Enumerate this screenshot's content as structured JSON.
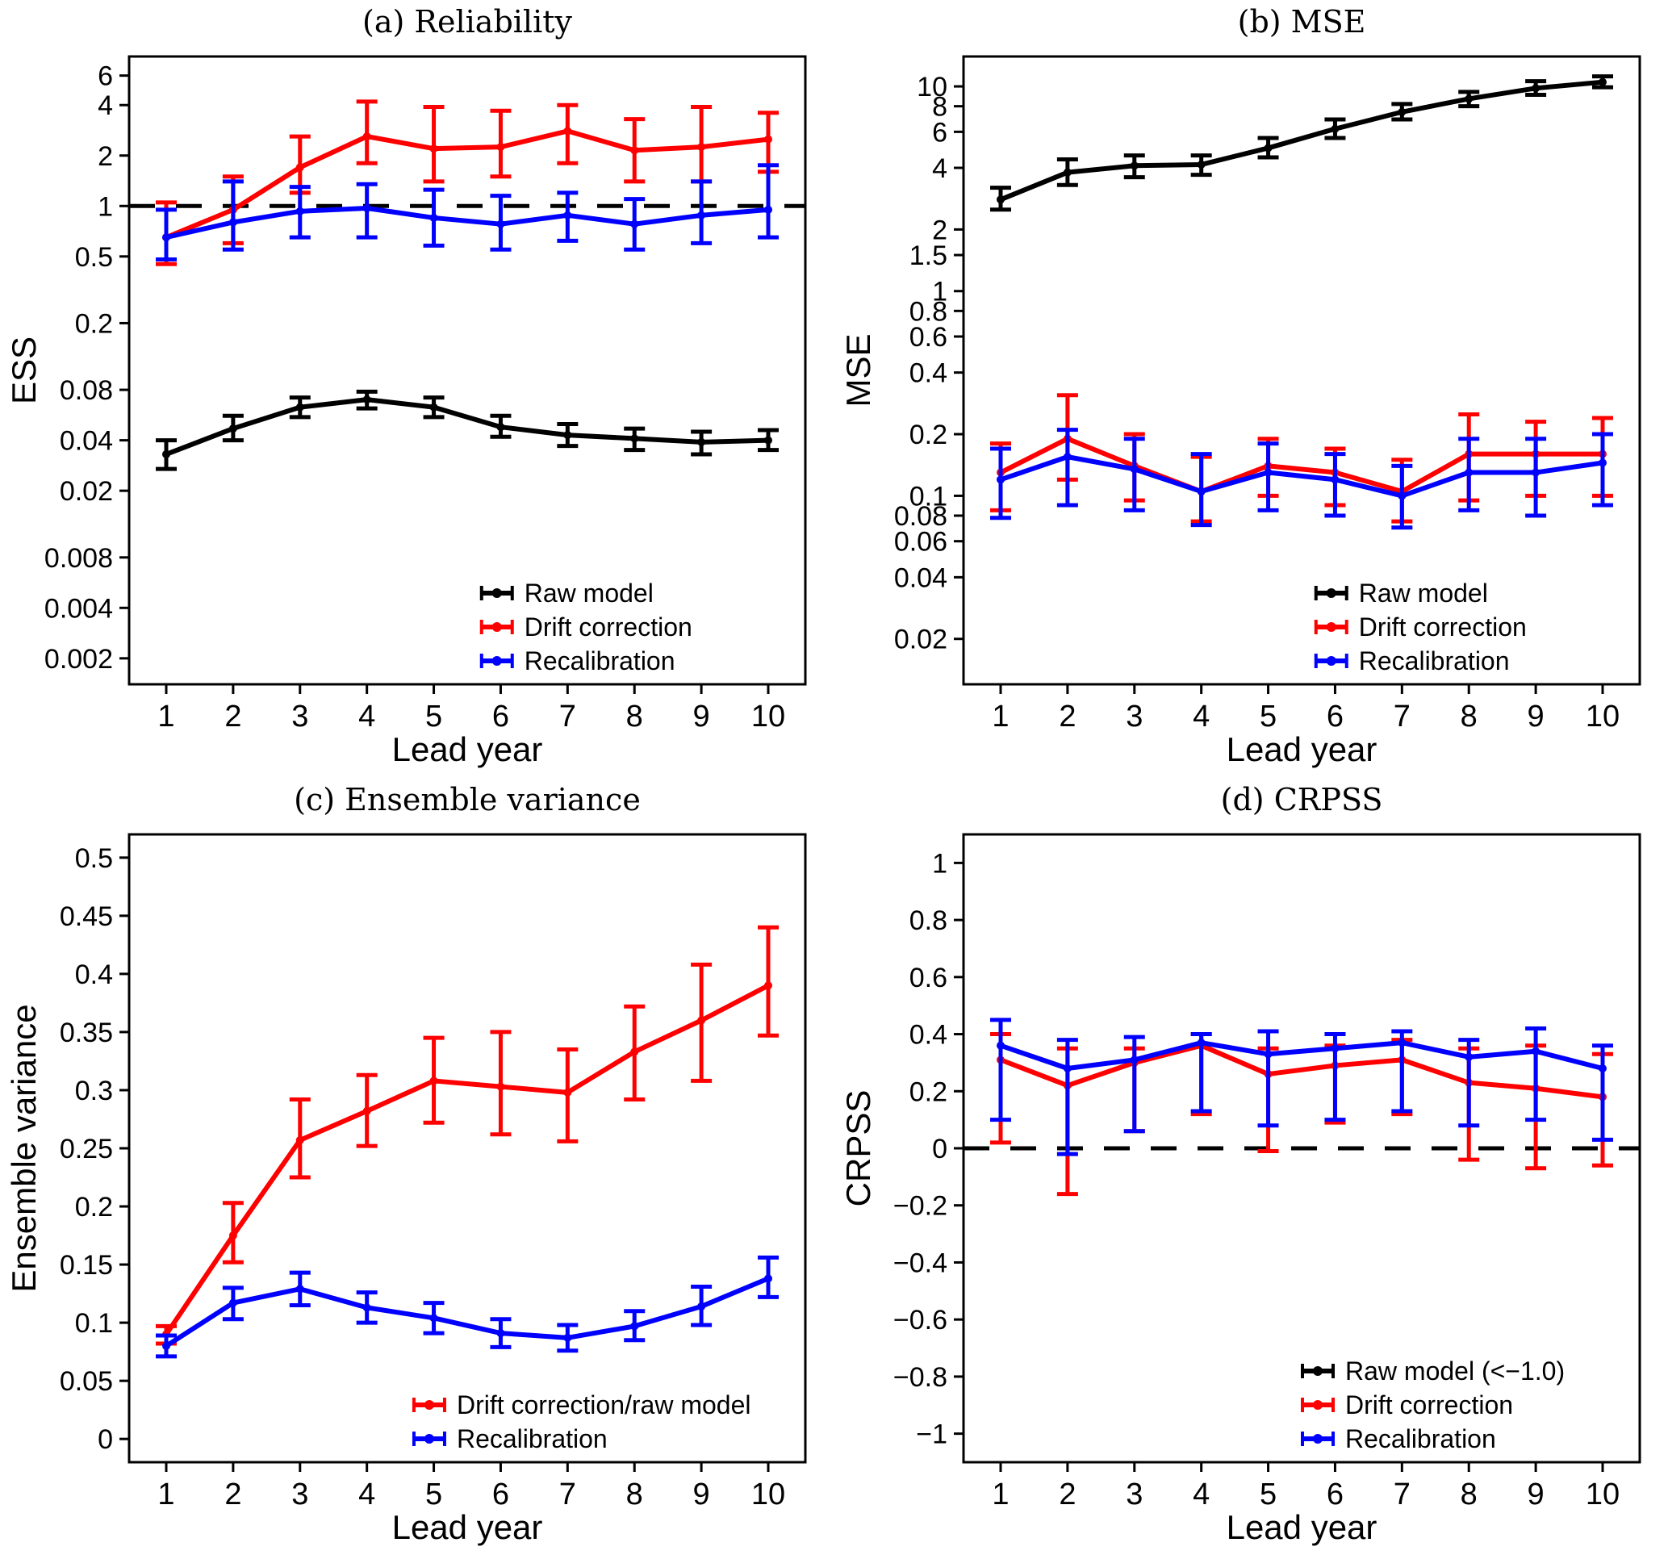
{
  "figure": {
    "background": "#ffffff"
  },
  "colors": {
    "raw_model": "#000000",
    "drift_correction": "#FF0000",
    "recalibration": "#0000FF"
  },
  "chart_data": [
    {
      "id": "a",
      "type": "line",
      "title": "(a) Reliability",
      "xlabel": "Lead year",
      "ylabel": "ESS",
      "scale": "log",
      "ylim": [
        0.0014,
        7.8
      ],
      "x": [
        1,
        2,
        3,
        4,
        5,
        6,
        7,
        8,
        9,
        10
      ],
      "xtick_labels": [
        "1",
        "2",
        "3",
        "4",
        "5",
        "6",
        "7",
        "8",
        "9",
        "10"
      ],
      "yticks": [
        {
          "v": 6,
          "label": "6"
        },
        {
          "v": 4,
          "label": "4"
        },
        {
          "v": 2,
          "label": "2"
        },
        {
          "v": 1,
          "label": "1"
        },
        {
          "v": 0.5,
          "label": "0.5"
        },
        {
          "v": 0.2,
          "label": "0.2"
        },
        {
          "v": 0.08,
          "label": "0.08"
        },
        {
          "v": 0.04,
          "label": "0.04"
        },
        {
          "v": 0.02,
          "label": "0.02"
        },
        {
          "v": 0.008,
          "label": "0.008"
        },
        {
          "v": 0.004,
          "label": "0.004"
        },
        {
          "v": 0.002,
          "label": "0.002"
        }
      ],
      "ref_line": 1,
      "series": [
        {
          "name": "Raw model",
          "color": "#000000",
          "values": [
            0.033,
            0.047,
            0.063,
            0.07,
            0.063,
            0.048,
            0.043,
            0.041,
            0.039,
            0.04
          ],
          "lo": [
            0.027,
            0.04,
            0.055,
            0.062,
            0.055,
            0.042,
            0.037,
            0.035,
            0.033,
            0.035
          ],
          "hi": [
            0.04,
            0.056,
            0.072,
            0.078,
            0.072,
            0.056,
            0.05,
            0.047,
            0.045,
            0.046
          ]
        },
        {
          "name": "Drift correction",
          "color": "#FF0000",
          "values": [
            0.65,
            0.95,
            1.7,
            2.6,
            2.2,
            2.25,
            2.8,
            2.15,
            2.25,
            2.5
          ],
          "lo": [
            0.45,
            0.6,
            1.2,
            1.8,
            1.4,
            1.5,
            1.8,
            1.4,
            1.4,
            1.6
          ],
          "hi": [
            1.05,
            1.5,
            2.6,
            4.2,
            3.9,
            3.7,
            4.0,
            3.3,
            3.9,
            3.6
          ]
        },
        {
          "name": "Recalibration",
          "color": "#0000FF",
          "values": [
            0.65,
            0.8,
            0.93,
            0.97,
            0.85,
            0.78,
            0.88,
            0.78,
            0.88,
            0.95
          ],
          "lo": [
            0.48,
            0.55,
            0.65,
            0.65,
            0.58,
            0.55,
            0.62,
            0.55,
            0.6,
            0.65
          ],
          "hi": [
            0.95,
            1.4,
            1.3,
            1.35,
            1.25,
            1.15,
            1.2,
            1.1,
            1.4,
            1.75
          ]
        }
      ],
      "legend": {
        "x_frac": 0.52,
        "entries": [
          {
            "label": "Raw model",
            "color": "#000000"
          },
          {
            "label": "Drift correction",
            "color": "#FF0000"
          },
          {
            "label": "Recalibration",
            "color": "#0000FF"
          }
        ]
      }
    },
    {
      "id": "b",
      "type": "line",
      "title": "(b) MSE",
      "xlabel": "Lead year",
      "ylabel": "MSE",
      "scale": "log",
      "ylim": [
        0.012,
        14
      ],
      "x": [
        1,
        2,
        3,
        4,
        5,
        6,
        7,
        8,
        9,
        10
      ],
      "xtick_labels": [
        "1",
        "2",
        "3",
        "4",
        "5",
        "6",
        "7",
        "8",
        "9",
        "10"
      ],
      "yticks": [
        {
          "v": 10,
          "label": "10"
        },
        {
          "v": 8,
          "label": "8"
        },
        {
          "v": 6,
          "label": "6"
        },
        {
          "v": 4,
          "label": "4"
        },
        {
          "v": 2,
          "label": "2"
        },
        {
          "v": 1.5,
          "label": "1.5"
        },
        {
          "v": 1,
          "label": "1"
        },
        {
          "v": 0.8,
          "label": "0.8"
        },
        {
          "v": 0.6,
          "label": "0.6"
        },
        {
          "v": 0.4,
          "label": "0.4"
        },
        {
          "v": 0.2,
          "label": "0.2"
        },
        {
          "v": 0.1,
          "label": "0.1"
        },
        {
          "v": 0.08,
          "label": "0.08"
        },
        {
          "v": 0.06,
          "label": "0.06"
        },
        {
          "v": 0.04,
          "label": "0.04"
        },
        {
          "v": 0.02,
          "label": "0.02"
        }
      ],
      "ref_line": null,
      "series": [
        {
          "name": "Raw model",
          "color": "#000000",
          "values": [
            2.8,
            3.8,
            4.1,
            4.15,
            5.0,
            6.2,
            7.5,
            8.7,
            9.8,
            10.5
          ],
          "lo": [
            2.5,
            3.3,
            3.6,
            3.7,
            4.5,
            5.6,
            6.9,
            8.0,
            9.1,
            9.9
          ],
          "hi": [
            3.2,
            4.4,
            4.6,
            4.6,
            5.6,
            6.9,
            8.2,
            9.4,
            10.6,
            11.2
          ]
        },
        {
          "name": "Drift correction",
          "color": "#FF0000",
          "values": [
            0.13,
            0.19,
            0.14,
            0.105,
            0.14,
            0.13,
            0.105,
            0.16,
            0.16,
            0.16
          ],
          "lo": [
            0.085,
            0.12,
            0.095,
            0.075,
            0.1,
            0.09,
            0.075,
            0.095,
            0.1,
            0.1
          ],
          "hi": [
            0.18,
            0.31,
            0.2,
            0.155,
            0.19,
            0.17,
            0.15,
            0.25,
            0.23,
            0.24
          ]
        },
        {
          "name": "Recalibration",
          "color": "#0000FF",
          "values": [
            0.12,
            0.155,
            0.135,
            0.105,
            0.13,
            0.12,
            0.1,
            0.13,
            0.13,
            0.145
          ],
          "lo": [
            0.078,
            0.09,
            0.085,
            0.072,
            0.085,
            0.08,
            0.07,
            0.085,
            0.08,
            0.09
          ],
          "hi": [
            0.17,
            0.21,
            0.19,
            0.16,
            0.18,
            0.16,
            0.14,
            0.19,
            0.19,
            0.2
          ]
        }
      ],
      "legend": {
        "x_frac": 0.52,
        "entries": [
          {
            "label": "Raw model",
            "color": "#000000"
          },
          {
            "label": "Drift correction",
            "color": "#FF0000"
          },
          {
            "label": "Recalibration",
            "color": "#0000FF"
          }
        ]
      }
    },
    {
      "id": "c",
      "type": "line",
      "title": "(c) Ensemble variance",
      "xlabel": "Lead year",
      "ylabel": "Ensemble variance",
      "scale": "linear",
      "ylim": [
        -0.02,
        0.52
      ],
      "x": [
        1,
        2,
        3,
        4,
        5,
        6,
        7,
        8,
        9,
        10
      ],
      "xtick_labels": [
        "1",
        "2",
        "3",
        "4",
        "5",
        "6",
        "7",
        "8",
        "9",
        "10"
      ],
      "yticks": [
        {
          "v": 0.5,
          "label": "0.5"
        },
        {
          "v": 0.45,
          "label": "0.45"
        },
        {
          "v": 0.4,
          "label": "0.4"
        },
        {
          "v": 0.35,
          "label": "0.35"
        },
        {
          "v": 0.3,
          "label": "0.3"
        },
        {
          "v": 0.25,
          "label": "0.25"
        },
        {
          "v": 0.2,
          "label": "0.2"
        },
        {
          "v": 0.15,
          "label": "0.15"
        },
        {
          "v": 0.1,
          "label": "0.1"
        },
        {
          "v": 0.05,
          "label": "0.05"
        },
        {
          "v": 0,
          "label": "0"
        }
      ],
      "ref_line": null,
      "series": [
        {
          "name": "Drift correction/raw model",
          "color": "#FF0000",
          "values": [
            0.09,
            0.175,
            0.257,
            0.282,
            0.308,
            0.303,
            0.298,
            0.333,
            0.36,
            0.39
          ],
          "lo": [
            0.082,
            0.152,
            0.225,
            0.252,
            0.272,
            0.262,
            0.256,
            0.292,
            0.308,
            0.347
          ],
          "hi": [
            0.097,
            0.203,
            0.292,
            0.313,
            0.345,
            0.35,
            0.335,
            0.372,
            0.408,
            0.44
          ]
        },
        {
          "name": "Recalibration",
          "color": "#0000FF",
          "values": [
            0.08,
            0.117,
            0.129,
            0.113,
            0.104,
            0.091,
            0.087,
            0.097,
            0.114,
            0.138
          ],
          "lo": [
            0.071,
            0.103,
            0.115,
            0.1,
            0.091,
            0.079,
            0.076,
            0.085,
            0.098,
            0.122
          ],
          "hi": [
            0.089,
            0.13,
            0.143,
            0.126,
            0.117,
            0.103,
            0.098,
            0.11,
            0.131,
            0.156
          ]
        }
      ],
      "legend": {
        "x_frac": 0.42,
        "entries": [
          {
            "label": "Drift correction/raw model",
            "color": "#FF0000"
          },
          {
            "label": "Recalibration",
            "color": "#0000FF"
          }
        ]
      }
    },
    {
      "id": "d",
      "type": "line",
      "title": "(d) CRPSS",
      "xlabel": "Lead year",
      "ylabel": "CRPSS",
      "scale": "linear",
      "ylim": [
        -1.1,
        1.1
      ],
      "x": [
        1,
        2,
        3,
        4,
        5,
        6,
        7,
        8,
        9,
        10
      ],
      "xtick_labels": [
        "1",
        "2",
        "3",
        "4",
        "5",
        "6",
        "7",
        "8",
        "9",
        "10"
      ],
      "yticks": [
        {
          "v": 1,
          "label": "1"
        },
        {
          "v": 0.8,
          "label": "0.8"
        },
        {
          "v": 0.6,
          "label": "0.6"
        },
        {
          "v": 0.4,
          "label": "0.4"
        },
        {
          "v": 0.2,
          "label": "0.2"
        },
        {
          "v": 0,
          "label": "0"
        },
        {
          "v": -0.2,
          "label": "−0.2"
        },
        {
          "v": -0.4,
          "label": "−0.4"
        },
        {
          "v": -0.6,
          "label": "−0.6"
        },
        {
          "v": -0.8,
          "label": "−0.8"
        },
        {
          "v": -1,
          "label": "−1"
        }
      ],
      "ref_line": 0,
      "series": [
        {
          "name": "Drift correction",
          "color": "#FF0000",
          "values": [
            0.31,
            0.22,
            0.3,
            0.36,
            0.26,
            0.29,
            0.31,
            0.23,
            0.21,
            0.18
          ],
          "lo": [
            0.02,
            -0.16,
            0.06,
            0.12,
            -0.01,
            0.09,
            0.12,
            -0.04,
            -0.07,
            -0.06
          ],
          "hi": [
            0.4,
            0.35,
            0.35,
            0.4,
            0.35,
            0.36,
            0.38,
            0.35,
            0.36,
            0.33
          ]
        },
        {
          "name": "Recalibration",
          "color": "#0000FF",
          "values": [
            0.36,
            0.28,
            0.31,
            0.37,
            0.33,
            0.35,
            0.37,
            0.32,
            0.34,
            0.28
          ],
          "lo": [
            0.1,
            -0.02,
            0.06,
            0.13,
            0.08,
            0.1,
            0.13,
            0.08,
            0.1,
            0.03
          ],
          "hi": [
            0.45,
            0.38,
            0.39,
            0.4,
            0.41,
            0.4,
            0.41,
            0.38,
            0.42,
            0.36
          ]
        }
      ],
      "legend": {
        "x_frac": 0.5,
        "entries": [
          {
            "label": "Raw model (<−1.0)",
            "color": "#000000"
          },
          {
            "label": "Drift correction",
            "color": "#FF0000"
          },
          {
            "label": "Recalibration",
            "color": "#0000FF"
          }
        ]
      }
    }
  ]
}
